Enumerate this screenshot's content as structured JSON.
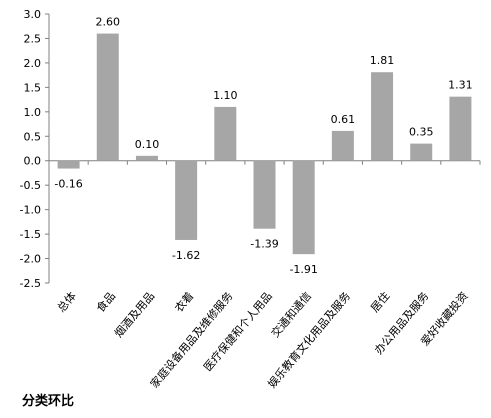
{
  "chart_data": {
    "type": "bar",
    "categories": [
      "总体",
      "食品",
      "烟酒及用品",
      "衣着",
      "家庭设备用品及维修服务",
      "医疗保健和个人用品",
      "交通和通信",
      "娱乐教育文化用品及服务",
      "居住",
      "办公用品及服务",
      "爱好收藏投资"
    ],
    "values": [
      -0.16,
      2.6,
      0.1,
      -1.62,
      1.1,
      -1.39,
      -1.91,
      0.61,
      1.81,
      0.35,
      1.31
    ],
    "data_labels": [
      "-0.16",
      "2.60",
      "0.10",
      "-1.62",
      "1.10",
      "-1.39",
      "-1.91",
      "0.61",
      "1.81",
      "0.35",
      "1.31"
    ],
    "y_ticks": [
      "3.0",
      "2.5",
      "2.0",
      "1.5",
      "1.0",
      "0.5",
      "0.0",
      "-0.5",
      "-1.0",
      "-1.5",
      "-2.0",
      "-2.5"
    ],
    "ylim": [
      -2.5,
      3.0
    ],
    "grid": false,
    "legend": "none",
    "bar_color": "#a6a6a6",
    "axis_color": "#808080",
    "title": "",
    "xlabel": "",
    "ylabel": ""
  },
  "footer": {
    "text": "分类环比"
  }
}
